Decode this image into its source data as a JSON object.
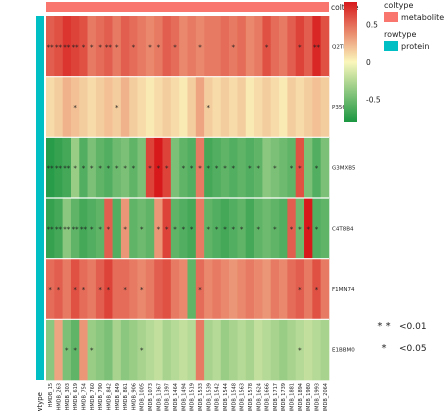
{
  "chart_data": {
    "type": "heatmap",
    "coltype_label": "coltype",
    "rowtype_label": "rowtype",
    "col_annotation_value": "metabolite",
    "row_annotation_value": "protein",
    "rows": [
      "Q2TRU2",
      "P35662",
      "G3MXB5",
      "C4T8B4",
      "F1MN74",
      "E1BBM0"
    ],
    "columns": [
      "HMDB_15",
      "HMDB_263",
      "HMDB_303",
      "HMDB_619",
      "HMDB_754",
      "HMDB_760",
      "HMDB_790",
      "HMDB_842",
      "HMDB_849",
      "HMDB_861",
      "HMDB_906",
      "HMDB_1005",
      "HMDB_1073",
      "HMDB_1367",
      "HMDB_1397",
      "HMDB_1464",
      "HMDB_1494",
      "HMDB_1519",
      "HMDB_1533",
      "HMDB_1539",
      "HMDB_1542",
      "HMDB_1544",
      "HMDB_1548",
      "HMDB_1563",
      "HMDB_1578",
      "HMDB_1624",
      "HMDB_1666",
      "HMDB_1717",
      "HMDB_1739",
      "HMDB_1881",
      "HMDB_1894",
      "HMDB_1980",
      "HMDB_1993",
      "HMDB_2064"
    ],
    "values": [
      [
        0.55,
        0.6,
        0.7,
        0.65,
        0.6,
        0.45,
        0.5,
        0.55,
        0.45,
        0.55,
        0.5,
        0.45,
        0.4,
        0.45,
        0.55,
        0.5,
        0.4,
        0.45,
        0.4,
        0.45,
        0.45,
        0.5,
        0.45,
        0.5,
        0.4,
        0.45,
        0.6,
        0.5,
        0.45,
        0.55,
        0.65,
        0.55,
        0.75,
        0.6
      ],
      [
        0.1,
        0.15,
        0.25,
        0.2,
        0.15,
        0.1,
        0.15,
        0.2,
        0.15,
        0.25,
        0.15,
        0.1,
        0.05,
        0.1,
        0.15,
        0.1,
        0.05,
        0.15,
        0.3,
        0.15,
        0.1,
        0.15,
        0.1,
        0.15,
        0.05,
        0.1,
        0.15,
        0.1,
        0.05,
        0.15,
        0.1,
        0.15,
        0.2,
        0.15
      ],
      [
        -0.75,
        -0.7,
        -0.65,
        -0.35,
        -0.6,
        -0.45,
        -0.55,
        -0.6,
        -0.5,
        -0.45,
        -0.55,
        -0.45,
        0.65,
        0.85,
        0.65,
        -0.45,
        -0.55,
        -0.6,
        0.45,
        -0.65,
        -0.6,
        -0.55,
        -0.6,
        -0.55,
        -0.6,
        -0.55,
        -0.4,
        -0.45,
        -0.5,
        -0.55,
        0.6,
        -0.45,
        -0.6,
        -0.45
      ],
      [
        -0.7,
        -0.65,
        -0.4,
        -0.55,
        -0.65,
        -0.6,
        -0.55,
        0.55,
        -0.6,
        0.35,
        -0.55,
        -0.5,
        -0.55,
        0.35,
        0.65,
        -0.55,
        -0.6,
        -0.65,
        0.45,
        -0.55,
        -0.6,
        -0.65,
        -0.6,
        -0.55,
        -0.65,
        -0.55,
        -0.5,
        -0.55,
        -0.6,
        0.55,
        -0.5,
        0.8,
        -0.6,
        -0.55
      ],
      [
        0.5,
        0.55,
        0.45,
        0.6,
        0.5,
        0.45,
        0.55,
        0.65,
        0.5,
        0.5,
        0.45,
        0.4,
        0.45,
        0.55,
        0.6,
        0.45,
        0.4,
        -0.55,
        0.5,
        0.4,
        0.45,
        0.4,
        0.35,
        0.4,
        0.45,
        0.4,
        0.35,
        0.45,
        0.4,
        0.5,
        0.55,
        0.45,
        0.6,
        0.45
      ],
      [
        -0.4,
        0.3,
        -0.45,
        -0.55,
        0.35,
        -0.35,
        -0.4,
        -0.45,
        -0.3,
        -0.4,
        -0.35,
        -0.3,
        -0.25,
        -0.2,
        -0.3,
        -0.25,
        -0.2,
        -0.25,
        0.45,
        -0.3,
        -0.25,
        -0.35,
        -0.3,
        -0.25,
        -0.3,
        -0.2,
        -0.25,
        -0.3,
        -0.35,
        -0.3,
        -0.25,
        -0.2,
        -0.25,
        -0.3
      ]
    ],
    "significance": [
      [
        "**",
        "**",
        "**",
        "**",
        "*",
        "*",
        "*",
        "**",
        "*",
        "",
        "*",
        "",
        "*",
        "*",
        "",
        "*",
        "",
        "",
        "*",
        "",
        "",
        "",
        "*",
        "",
        "",
        "",
        "*",
        "",
        "",
        "",
        "*",
        "",
        "**",
        ""
      ],
      [
        "",
        "",
        "",
        "*",
        "",
        "",
        "",
        "",
        "*",
        "",
        "",
        "",
        "",
        "",
        "",
        "",
        "",
        "",
        "",
        "*",
        "",
        "",
        "",
        "",
        "",
        "",
        "",
        "",
        "",
        "",
        "",
        "",
        "",
        ""
      ],
      [
        "**",
        "**",
        "**",
        "*",
        "*",
        "*",
        "*",
        "*",
        "*",
        "*",
        "*",
        "",
        "*",
        "*",
        "*",
        "",
        "*",
        "*",
        "*",
        "*",
        "*",
        "*",
        "*",
        "",
        "*",
        "*",
        "",
        "*",
        "",
        "*",
        "*",
        "",
        "*",
        ""
      ],
      [
        "**",
        "**",
        "**",
        "**",
        "**",
        "*",
        "*",
        "*",
        "",
        "*",
        "",
        "*",
        "",
        "*",
        "*",
        "*",
        "*",
        "*",
        "",
        "*",
        "*",
        "*",
        "*",
        "*",
        "",
        "*",
        "",
        "*",
        "",
        "*",
        "*",
        "*",
        "*",
        ""
      ],
      [
        "*",
        "*",
        "",
        "*",
        "*",
        "",
        "*",
        "*",
        "",
        "*",
        "",
        "*",
        "",
        "",
        "",
        "",
        "",
        "",
        "*",
        "",
        "",
        "",
        "",
        "",
        "",
        "",
        "",
        "",
        "",
        "",
        "*",
        "",
        "*",
        ""
      ],
      [
        "",
        "",
        "*",
        "*",
        "",
        "*",
        "",
        "",
        "",
        "",
        "",
        "*",
        "",
        "",
        "",
        "",
        "",
        "",
        "",
        "",
        "",
        "",
        "",
        "",
        "",
        "",
        "",
        "",
        "",
        "",
        "*",
        "",
        "",
        ""
      ]
    ],
    "color_scale": {
      "min": -0.8,
      "max": 0.8,
      "low": "#1a9641",
      "mid": "#fbf7bc",
      "high": "#d7191c",
      "ticks": [
        0.5,
        0,
        -0.5
      ]
    },
    "annotation_colors": {
      "metabolite": "#f8766d",
      "protein": "#00bfc4"
    },
    "significance_legend": [
      {
        "symbol": "* *",
        "label": "<0.01"
      },
      {
        "symbol": "*",
        "label": "<0.05"
      }
    ]
  }
}
